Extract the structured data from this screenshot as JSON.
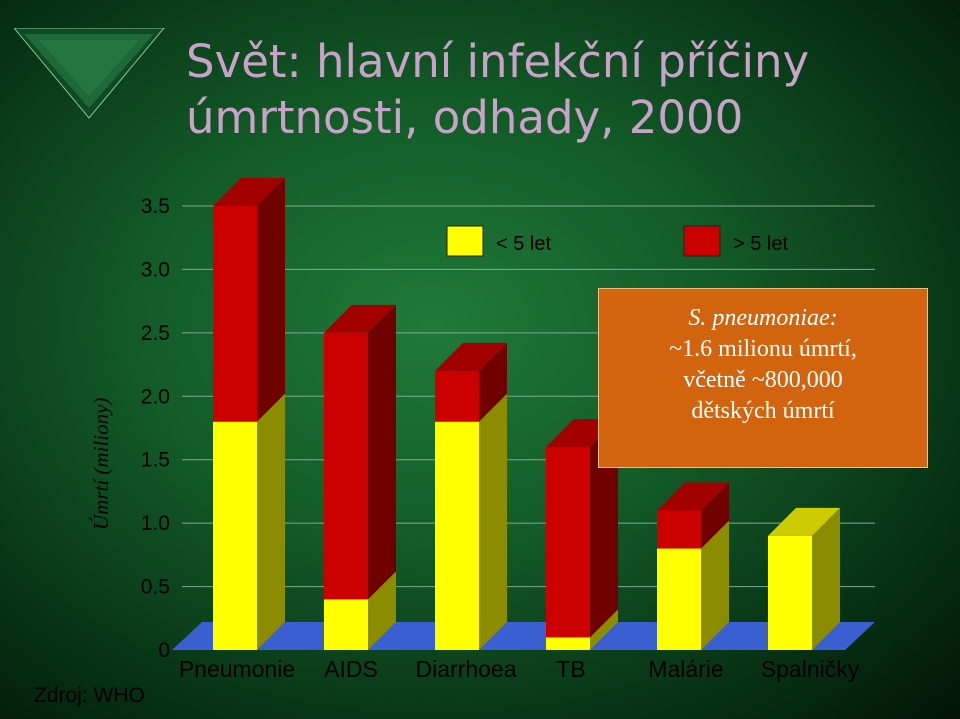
{
  "title": "Svět: hlavní infekční příčiny úmrtnosti, odhady, 2000",
  "source": "Zdroj: WHO",
  "callout": {
    "line1": "S. pneumoniae:",
    "line2": "~1.6 milionu úmrtí,",
    "line3": "včetně ~800,000",
    "line4": "dětských úmrtí"
  },
  "colors": {
    "under5": "#ffff00",
    "over5": "#cc0000",
    "floor": "#3a5fd0"
  },
  "chart_data": {
    "type": "bar",
    "stacked": true,
    "ylabel": "Úmrtí  (miliony)",
    "ylim": [
      0,
      3.5
    ],
    "yticks": [
      "0",
      "0.5",
      "1.0",
      "1.5",
      "2.0",
      "2.5",
      "3.0",
      "3.5"
    ],
    "categories": [
      "Pneumonie",
      "AIDS",
      "Diarrhoea",
      "TB",
      "Malárie",
      "Spalničky"
    ],
    "series": [
      {
        "name": "< 5 let",
        "values": [
          1.8,
          0.4,
          1.8,
          0.1,
          0.8,
          0.9
        ]
      },
      {
        "name": "> 5 let",
        "values": [
          1.7,
          2.1,
          0.4,
          1.5,
          0.3,
          0.0
        ]
      }
    ],
    "legend_placement": "top-right",
    "grid": true
  }
}
